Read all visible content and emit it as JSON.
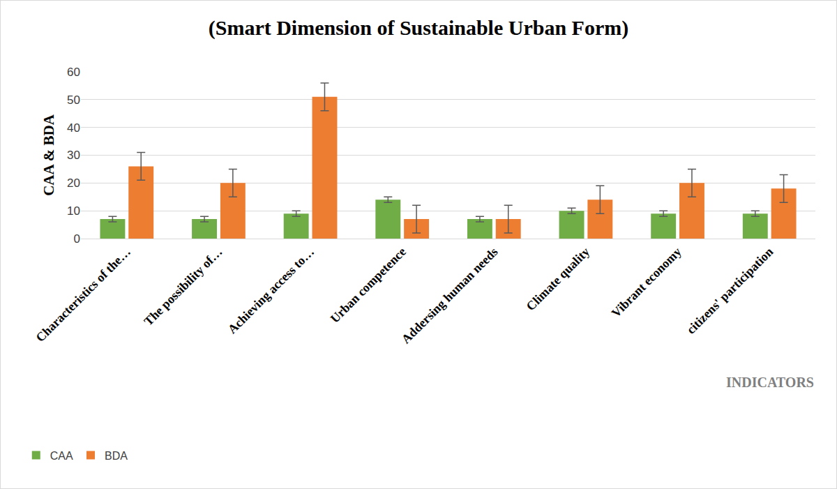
{
  "chart_data": {
    "type": "bar",
    "title": "(Smart Dimension of Sustainable Urban Form)",
    "x_label": "INDICATORS",
    "y_label": "CAA & BDA",
    "categories": [
      "Characteristics of the…",
      "The possibility of…",
      "Achieving access to…",
      "Urban competence",
      "Addersing human needs",
      "Climate quality",
      "Vibrant economy",
      "citizens' participation"
    ],
    "series": [
      {
        "name": "CAA",
        "color": "#70ad47",
        "values": [
          7,
          7,
          9,
          14,
          7,
          10,
          9,
          9
        ],
        "errors": [
          1,
          1,
          1,
          1,
          1,
          1,
          1,
          1
        ]
      },
      {
        "name": "BDA",
        "color": "#ed7d31",
        "values": [
          26,
          20,
          51,
          7,
          7,
          14,
          20,
          18
        ],
        "errors": [
          5,
          5,
          5,
          5,
          5,
          5,
          5,
          5
        ]
      }
    ],
    "ylim": [
      0,
      60
    ],
    "yticks": [
      0,
      10,
      20,
      30,
      40,
      50,
      60
    ],
    "grid": true,
    "legend": "bottom left"
  }
}
